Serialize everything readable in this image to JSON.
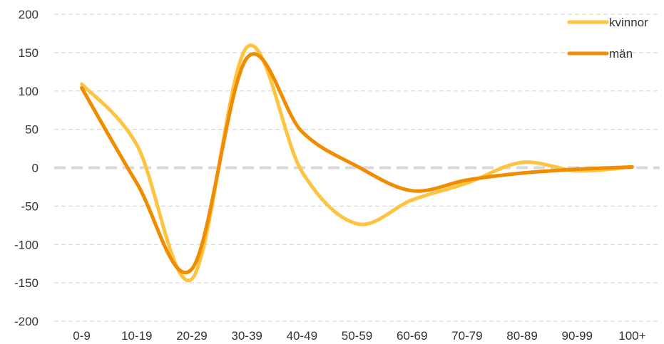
{
  "chart_data": {
    "type": "line",
    "title": "",
    "xlabel": "",
    "ylabel": "",
    "categories": [
      "0-9",
      "10-19",
      "20-29",
      "30-39",
      "40-49",
      "50-59",
      "60-69",
      "70-79",
      "80-89",
      "90-99",
      "100+"
    ],
    "yticks": [
      "200",
      "150",
      "100",
      "50",
      "0",
      "-50",
      "-100",
      "-150",
      "-200"
    ],
    "ylim": [
      -200,
      200
    ],
    "grid": true,
    "legend_position": "top-right",
    "series": [
      {
        "name": "kvinnor",
        "color": "#FFC342",
        "values": [
          109,
          30,
          -145,
          157,
          -5,
          -73,
          -42,
          -20,
          7,
          -4,
          1
        ]
      },
      {
        "name": "män",
        "color": "#F08C00",
        "values": [
          104,
          -20,
          -132,
          143,
          47,
          2,
          -30,
          -16,
          -7,
          -2,
          1
        ]
      }
    ]
  }
}
